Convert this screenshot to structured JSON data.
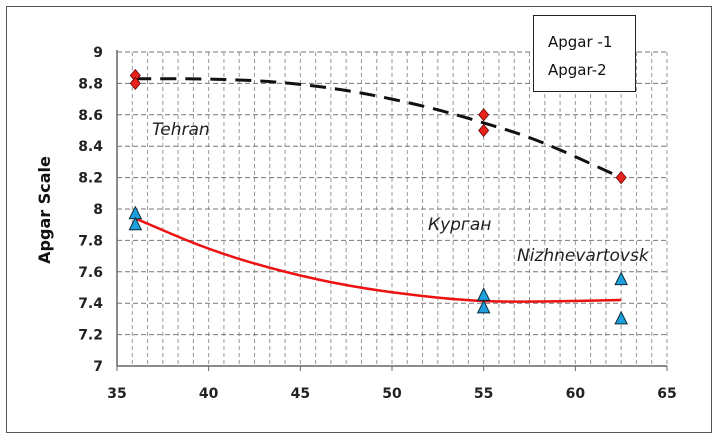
{
  "chart_data": {
    "type": "scatter",
    "title": "",
    "xlabel": "",
    "ylabel": "Apgar Scale",
    "xlim": [
      35,
      65
    ],
    "ylim": [
      7,
      9
    ],
    "xticks": [
      "35",
      "40",
      "45",
      "50",
      "55",
      "60",
      "65"
    ],
    "yticks": [
      "7",
      "7.2",
      "7.4",
      "7.6",
      "7.8",
      "8",
      "8.2",
      "8.4",
      "8.6",
      "8.8",
      "9"
    ],
    "grid": true,
    "legend_position": "top-right",
    "series": [
      {
        "name": "Apgar -1",
        "marker": "diamond",
        "color": "#e8231c",
        "points": [
          [
            36,
            8.85
          ],
          [
            36,
            8.8
          ],
          [
            55,
            8.6
          ],
          [
            55,
            8.5
          ],
          [
            62.5,
            8.2
          ]
        ],
        "trend": {
          "style": "dashed",
          "color": "#111111",
          "x": [
            36,
            40,
            44,
            48,
            52,
            55,
            58,
            62.5
          ],
          "y": [
            8.83,
            8.83,
            8.81,
            8.75,
            8.65,
            8.55,
            8.44,
            8.2
          ]
        }
      },
      {
        "name": "Apgar-2",
        "marker": "triangle",
        "color": "#1ea0dc",
        "points": [
          [
            36,
            7.97
          ],
          [
            36,
            7.9
          ],
          [
            55,
            7.45
          ],
          [
            55,
            7.37
          ],
          [
            62.5,
            7.55
          ],
          [
            62.5,
            7.3
          ]
        ],
        "trend": {
          "style": "solid",
          "color": "#ee1111",
          "x": [
            36,
            40,
            44,
            48,
            52,
            55,
            58,
            62.5
          ],
          "y": [
            7.94,
            7.74,
            7.6,
            7.5,
            7.44,
            7.41,
            7.41,
            7.42
          ]
        }
      }
    ],
    "annotations": [
      "Tehran",
      "Курган",
      "Nizhnevartovsk"
    ]
  }
}
